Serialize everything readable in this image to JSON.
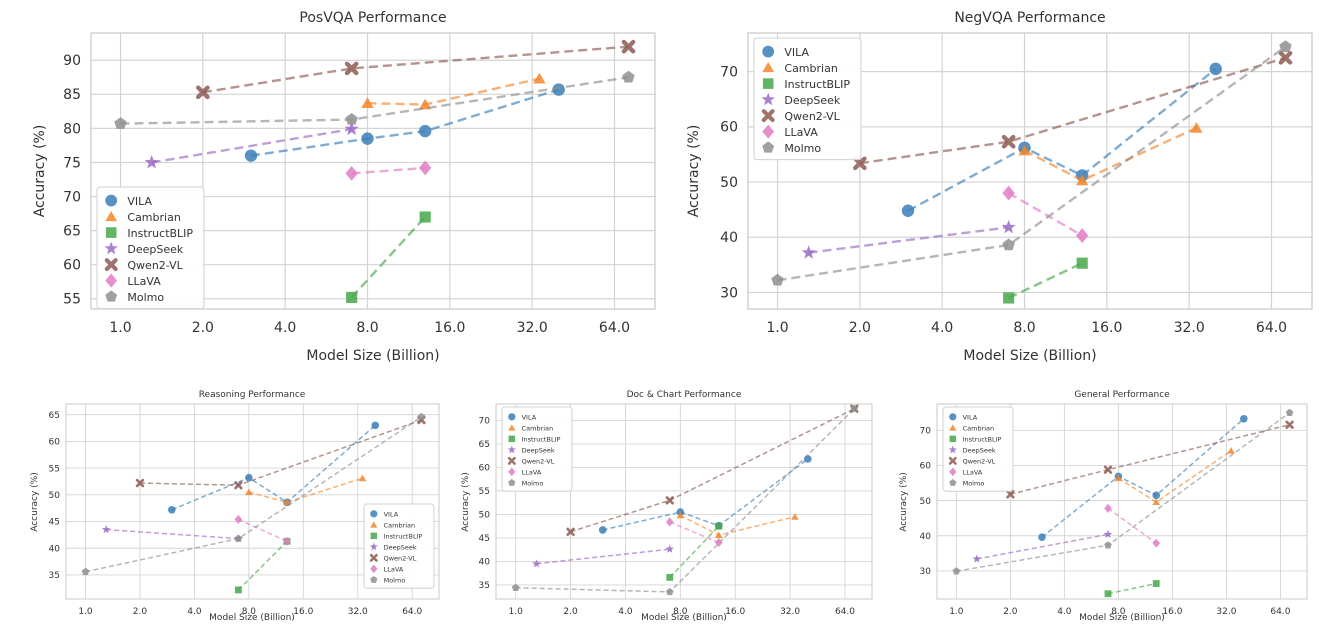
{
  "colors": {
    "VILA": "#3b7fb8",
    "Cambrian": "#f4852a",
    "InstructBLIP": "#47a84a",
    "DeepSeek": "#9b6bc4",
    "Qwen2-VL": "#8c5a52",
    "LLaVA": "#e27bc6",
    "Molmo": "#8f8f8f"
  },
  "markers": {
    "VILA": "circle",
    "Cambrian": "triangle",
    "InstructBLIP": "square",
    "DeepSeek": "star",
    "Qwen2-VL": "x",
    "LLaVA": "diamond",
    "Molmo": "pentagon"
  },
  "chart_data": [
    {
      "id": "posvqa",
      "type": "line",
      "title": "PosVQA Performance",
      "xlabel": "Model Size (Billion)",
      "ylabel": "Accuracy (%)",
      "xscale": "log2",
      "xticks": [
        1,
        2,
        4,
        8,
        16,
        32,
        64
      ],
      "xtick_labels": [
        "1.0",
        "2.0",
        "4.0",
        "8.0",
        "16.0",
        "32.0",
        "64.0"
      ],
      "yticks": [
        55,
        60,
        65,
        70,
        75,
        80,
        85,
        90
      ],
      "xlim": [
        0.78,
        90
      ],
      "ylim": [
        53.5,
        94
      ],
      "legend_position": "lower-left",
      "series": [
        {
          "name": "VILA",
          "x": [
            3,
            8,
            13,
            40
          ],
          "y": [
            76.0,
            78.5,
            79.6,
            85.7
          ]
        },
        {
          "name": "Cambrian",
          "x": [
            8,
            13,
            34
          ],
          "y": [
            83.7,
            83.5,
            87.3
          ]
        },
        {
          "name": "InstructBLIP",
          "x": [
            7,
            13
          ],
          "y": [
            55.2,
            67.0
          ]
        },
        {
          "name": "DeepSeek",
          "x": [
            1.3,
            7
          ],
          "y": [
            75.0,
            79.9
          ]
        },
        {
          "name": "Qwen2-VL",
          "x": [
            2,
            7,
            72
          ],
          "y": [
            85.3,
            88.8,
            92.0
          ]
        },
        {
          "name": "LLaVA",
          "x": [
            7,
            13
          ],
          "y": [
            73.4,
            74.2
          ]
        },
        {
          "name": "Molmo",
          "x": [
            1,
            7,
            72
          ],
          "y": [
            80.7,
            81.3,
            87.5
          ]
        }
      ]
    },
    {
      "id": "negvqa",
      "type": "line",
      "title": "NegVQA Performance",
      "xlabel": "Model Size (Billion)",
      "ylabel": "Accuracy (%)",
      "xscale": "log2",
      "xticks": [
        1,
        2,
        4,
        8,
        16,
        32,
        64
      ],
      "xtick_labels": [
        "1.0",
        "2.0",
        "4.0",
        "8.0",
        "16.0",
        "32.0",
        "64.0"
      ],
      "yticks": [
        30,
        40,
        50,
        60,
        70
      ],
      "xlim": [
        0.78,
        90
      ],
      "ylim": [
        27,
        77
      ],
      "legend_position": "upper-left",
      "series": [
        {
          "name": "VILA",
          "x": [
            3,
            8,
            13,
            40
          ],
          "y": [
            44.8,
            56.2,
            51.2,
            70.5
          ]
        },
        {
          "name": "Cambrian",
          "x": [
            8,
            13,
            34
          ],
          "y": [
            55.7,
            50.3,
            59.8
          ]
        },
        {
          "name": "InstructBLIP",
          "x": [
            7,
            13
          ],
          "y": [
            29.0,
            35.3
          ]
        },
        {
          "name": "DeepSeek",
          "x": [
            1.3,
            7
          ],
          "y": [
            37.2,
            41.8
          ]
        },
        {
          "name": "Qwen2-VL",
          "x": [
            2,
            7,
            72
          ],
          "y": [
            53.4,
            57.3,
            72.5
          ]
        },
        {
          "name": "LLaVA",
          "x": [
            7,
            13
          ],
          "y": [
            48.0,
            40.3
          ]
        },
        {
          "name": "Molmo",
          "x": [
            1,
            7,
            72
          ],
          "y": [
            32.2,
            38.6,
            74.5
          ]
        }
      ]
    },
    {
      "id": "reasoning",
      "type": "line",
      "title": "Reasoning Performance",
      "xlabel": "Model Size (Billion)",
      "ylabel": "Accuracy (%)",
      "xscale": "log2",
      "xticks": [
        1,
        2,
        4,
        8,
        16,
        32,
        64
      ],
      "xtick_labels": [
        "1.0",
        "2.0",
        "4.0",
        "8.0",
        "16.0",
        "32.0",
        "64.0"
      ],
      "yticks": [
        35,
        40,
        45,
        50,
        55,
        60,
        65
      ],
      "xlim": [
        0.78,
        90
      ],
      "ylim": [
        30.5,
        67
      ],
      "legend_position": "lower-right",
      "series": [
        {
          "name": "VILA",
          "x": [
            3,
            8,
            13,
            40
          ],
          "y": [
            47.2,
            53.2,
            48.6,
            63.0
          ]
        },
        {
          "name": "Cambrian",
          "x": [
            8,
            13,
            34
          ],
          "y": [
            50.5,
            48.6,
            53.1
          ]
        },
        {
          "name": "InstructBLIP",
          "x": [
            7,
            13
          ],
          "y": [
            32.2,
            41.3
          ]
        },
        {
          "name": "DeepSeek",
          "x": [
            1.3,
            7
          ],
          "y": [
            43.5,
            41.8
          ]
        },
        {
          "name": "Qwen2-VL",
          "x": [
            2,
            7,
            72
          ],
          "y": [
            52.2,
            51.8,
            64.0
          ]
        },
        {
          "name": "LLaVA",
          "x": [
            7,
            13
          ],
          "y": [
            45.4,
            41.3
          ]
        },
        {
          "name": "Molmo",
          "x": [
            1,
            7,
            72
          ],
          "y": [
            35.6,
            41.8,
            64.6
          ]
        }
      ]
    },
    {
      "id": "docchart",
      "type": "line",
      "title": "Doc & Chart Performance",
      "xlabel": "Model Size (Billion)",
      "ylabel": "Accuracy (%)",
      "xscale": "log2",
      "xticks": [
        1,
        2,
        4,
        8,
        16,
        32,
        64
      ],
      "xtick_labels": [
        "1.0",
        "2.0",
        "4.0",
        "8.0",
        "16.0",
        "32.0",
        "64.0"
      ],
      "yticks": [
        35,
        40,
        45,
        50,
        55,
        60,
        65,
        70
      ],
      "xlim": [
        0.78,
        90
      ],
      "ylim": [
        32,
        73.5
      ],
      "legend_position": "upper-left",
      "series": [
        {
          "name": "VILA",
          "x": [
            3,
            8,
            13,
            40
          ],
          "y": [
            46.7,
            50.5,
            47.6,
            61.8
          ]
        },
        {
          "name": "Cambrian",
          "x": [
            8,
            13,
            34
          ],
          "y": [
            49.8,
            45.6,
            49.5
          ]
        },
        {
          "name": "InstructBLIP",
          "x": [
            7,
            13
          ],
          "y": [
            36.6,
            47.5
          ]
        },
        {
          "name": "DeepSeek",
          "x": [
            1.3,
            7
          ],
          "y": [
            39.5,
            42.6
          ]
        },
        {
          "name": "Qwen2-VL",
          "x": [
            2,
            7,
            72
          ],
          "y": [
            46.3,
            53.0,
            72.5
          ]
        },
        {
          "name": "LLaVA",
          "x": [
            7,
            13
          ],
          "y": [
            48.4,
            44.0
          ]
        },
        {
          "name": "Molmo",
          "x": [
            1,
            7,
            72
          ],
          "y": [
            34.4,
            33.5,
            72.5
          ]
        }
      ]
    },
    {
      "id": "general",
      "type": "line",
      "title": "General Performance",
      "xlabel": "Model Size (Billion)",
      "ylabel": "Accuracy (%)",
      "xscale": "log2",
      "xticks": [
        1,
        2,
        4,
        8,
        16,
        32,
        64
      ],
      "xtick_labels": [
        "1.0",
        "2.0",
        "4.0",
        "8.0",
        "16.0",
        "32.0",
        "64.0"
      ],
      "yticks": [
        30,
        40,
        50,
        60,
        70
      ],
      "xlim": [
        0.78,
        90
      ],
      "ylim": [
        22,
        77.5
      ],
      "legend_position": "upper-left",
      "series": [
        {
          "name": "VILA",
          "x": [
            3,
            8,
            13,
            40
          ],
          "y": [
            39.6,
            56.9,
            51.5,
            73.3
          ]
        },
        {
          "name": "Cambrian",
          "x": [
            8,
            13,
            34
          ],
          "y": [
            56.4,
            49.6,
            64.2
          ]
        },
        {
          "name": "InstructBLIP",
          "x": [
            7,
            13
          ],
          "y": [
            23.5,
            26.4
          ]
        },
        {
          "name": "DeepSeek",
          "x": [
            1.3,
            7
          ],
          "y": [
            33.4,
            40.4
          ]
        },
        {
          "name": "Qwen2-VL",
          "x": [
            2,
            7,
            72
          ],
          "y": [
            51.8,
            58.8,
            71.6
          ]
        },
        {
          "name": "LLaVA",
          "x": [
            7,
            13
          ],
          "y": [
            47.8,
            37.9
          ]
        },
        {
          "name": "Molmo",
          "x": [
            1,
            7,
            72
          ],
          "y": [
            29.9,
            37.3,
            75.0
          ]
        }
      ]
    }
  ]
}
